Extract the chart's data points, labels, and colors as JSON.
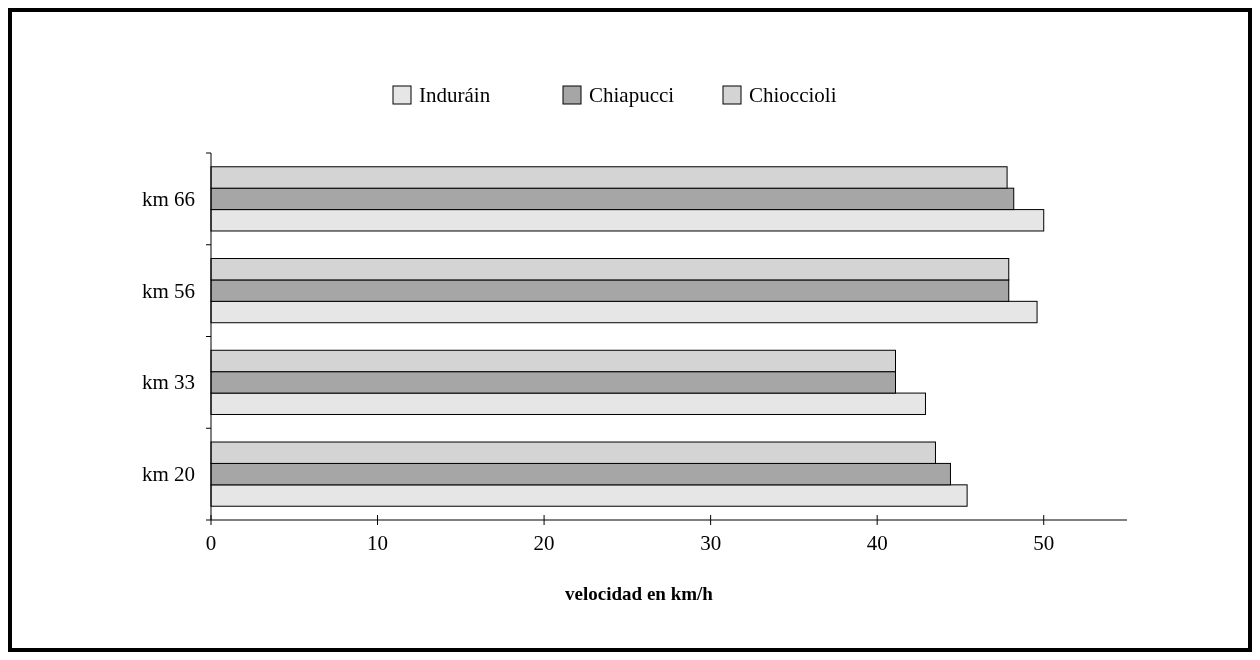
{
  "chart_data": {
    "type": "bar",
    "orientation": "horizontal",
    "xlabel": "velocidad en km/h",
    "categories": [
      "km 66",
      "km 56",
      "km 33",
      "km 20"
    ],
    "series": [
      {
        "name": "Induráin",
        "color": "#e6e6e6",
        "values": [
          50.0,
          49.6,
          42.9,
          45.4
        ]
      },
      {
        "name": "Chiapucci",
        "color": "#a6a6a6",
        "values": [
          48.2,
          47.9,
          41.1,
          44.4
        ]
      },
      {
        "name": "Chioccioli",
        "color": "#d4d4d4",
        "values": [
          47.8,
          47.9,
          41.1,
          43.5
        ]
      }
    ],
    "xlim": [
      0,
      55
    ],
    "xticks": [
      0,
      10,
      20,
      30,
      40,
      50
    ],
    "grid": false,
    "legend": "top"
  }
}
